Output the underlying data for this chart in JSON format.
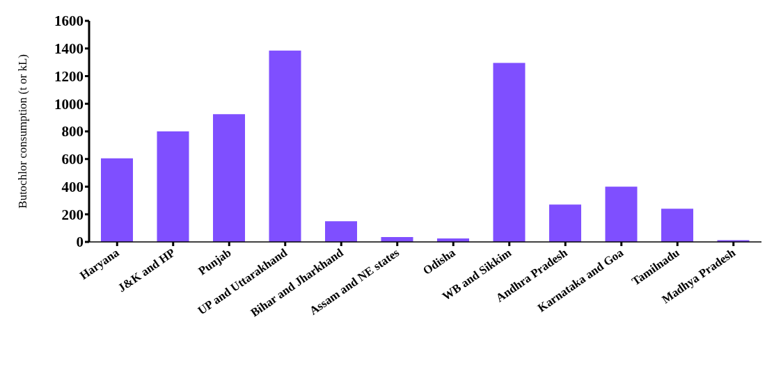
{
  "chart_data": {
    "type": "bar",
    "ylabel": "Butochlor consumption (t or kL)",
    "categories": [
      "Haryana",
      "J&K and HP",
      "Punjab",
      "UP and Uttarakhand",
      "Bihar and Jharkhand",
      "Assam and NE states",
      "Odisha",
      "WB and Sikkim",
      "Andhra Pradesh",
      "Karnataka and Goa",
      "Tamilnadu",
      "Madhya Pradesh"
    ],
    "values": [
      605,
      800,
      925,
      1385,
      150,
      35,
      25,
      1295,
      270,
      400,
      240,
      12
    ],
    "color": "#7f4fff",
    "ylim": [
      0,
      1600
    ],
    "yticks": [
      0,
      200,
      400,
      600,
      800,
      1000,
      1200,
      1400,
      1600
    ],
    "grid": false,
    "legend": false
  }
}
